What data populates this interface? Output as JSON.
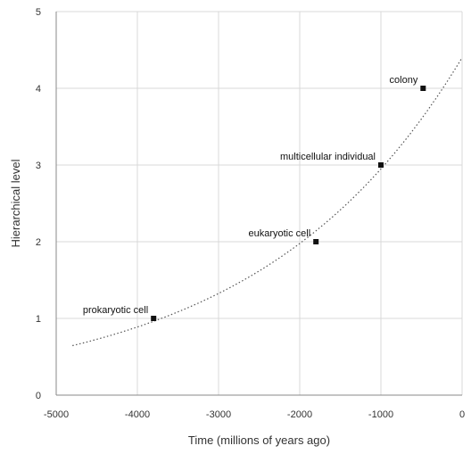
{
  "chart_data": {
    "type": "scatter",
    "xlabel": "Time (millions of years ago)",
    "ylabel": "Hierarchical level",
    "xlim": [
      -5000,
      0
    ],
    "ylim": [
      0,
      5
    ],
    "xticks": [
      -5000,
      -4000,
      -3000,
      -2000,
      -1000,
      0
    ],
    "xtick_labels": [
      "-5000",
      "-4000",
      "-3000",
      "-2000",
      "-1000",
      "0"
    ],
    "yticks": [
      0,
      1,
      2,
      3,
      4,
      5
    ],
    "ytick_labels": [
      "0",
      "1",
      "2",
      "3",
      "4",
      "5"
    ],
    "grid": true,
    "legend": "none",
    "points": [
      {
        "label": "prokaryotic cell",
        "x": -3800,
        "y": 1
      },
      {
        "label": "eukaryotic cell",
        "x": -1800,
        "y": 2
      },
      {
        "label": "multicellular individual",
        "x": -1000,
        "y": 3
      },
      {
        "label": "colony",
        "x": -480,
        "y": 4
      }
    ],
    "trendline": {
      "style": "dotted",
      "type": "exponential",
      "x_start": -4800,
      "x_end": 0,
      "a": 4.4,
      "b": 0.0004
    },
    "colors": {
      "point": "#111111",
      "trend": "#555555",
      "grid": "#d9d9d9",
      "axis": "#888888"
    }
  }
}
